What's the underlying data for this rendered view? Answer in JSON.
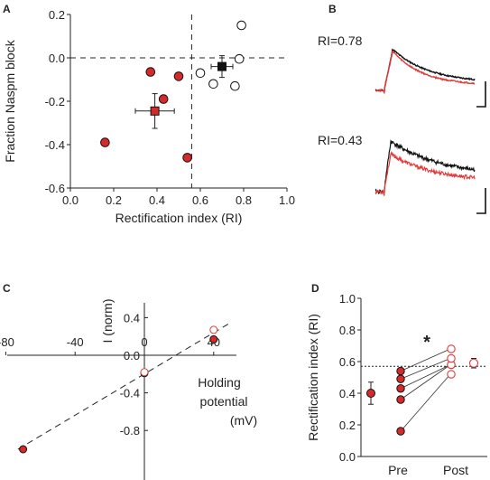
{
  "chart_data": [
    {
      "panel": "A",
      "type": "scatter",
      "xlabel": "Rectification index (RI)",
      "ylabel": "Fraction Naspm block",
      "xlim": [
        0.0,
        1.0
      ],
      "ylim": [
        -0.6,
        0.2
      ],
      "xticks": [
        "0.0",
        "0.2",
        "0.4",
        "0.6",
        "0.8",
        "1.0"
      ],
      "yticks": [
        "0.2",
        "0.0",
        "-0.2",
        "-0.4",
        "-0.6"
      ],
      "threshold_x": 0.56,
      "threshold_y": 0.0,
      "series": [
        {
          "fill": "#d42a2a",
          "marker": "circle",
          "points": [
            [
              0.16,
              -0.39
            ],
            [
              0.37,
              -0.065
            ],
            [
              0.43,
              -0.19
            ],
            [
              0.5,
              -0.085
            ],
            [
              0.54,
              -0.46
            ]
          ]
        },
        {
          "fill": "#ffffff",
          "marker": "circle",
          "points": [
            [
              0.6,
              -0.07
            ],
            [
              0.66,
              -0.12
            ],
            [
              0.76,
              -0.13
            ],
            [
              0.78,
              -0.005
            ],
            [
              0.79,
              0.15
            ]
          ]
        },
        {
          "fill": "#d42a2a",
          "marker": "square",
          "points": [
            [
              0.39,
              -0.245
            ]
          ],
          "xerr": 0.09,
          "yerr": 0.08
        },
        {
          "fill": "#111111",
          "marker": "square",
          "points": [
            [
              0.7,
              -0.04
            ]
          ],
          "xerr": 0.05,
          "yerr": 0.05
        }
      ]
    },
    {
      "panel": "B",
      "type": "line",
      "labels": [
        "RI=0.78",
        "RI=0.43"
      ],
      "series_colors": [
        "#111111",
        "#e33a3a"
      ]
    },
    {
      "panel": "C",
      "type": "scatter",
      "ylabel": "I (norm)",
      "xlabel_lines": [
        "Holding",
        "potential",
        "(mV)"
      ],
      "xlim": [
        -80,
        50
      ],
      "ylim": [
        -1.0,
        0.5
      ],
      "xticks": [
        "-80",
        "-40",
        "0",
        "40"
      ],
      "xtick_values": [
        -80,
        -40,
        0,
        40
      ],
      "yticks": [
        "0.4",
        "0.0",
        "-0.4",
        "-0.8"
      ],
      "ytick_values": [
        0.4,
        0.0,
        -0.4,
        -0.8
      ],
      "series": [
        {
          "fill": "#d42a2a",
          "points": [
            [
              -70,
              -1.0
            ],
            [
              0,
              -0.19
            ],
            [
              40,
              0.17
            ]
          ]
        },
        {
          "fill": "#ffffff",
          "stroke": "#e33a3a",
          "points": [
            [
              0,
              -0.18
            ],
            [
              40,
              0.27
            ]
          ]
        }
      ],
      "fit_line": [
        [
          -73,
          -1.0
        ],
        [
          50,
          0.35
        ]
      ]
    },
    {
      "panel": "D",
      "type": "scatter",
      "ylabel": "Rectification index (RI)",
      "categories": [
        "Pre",
        "Post"
      ],
      "ylim": [
        0.0,
        1.0
      ],
      "yticks": [
        "1.0",
        "0.8",
        "0.6",
        "0.4",
        "0.2",
        "0.0"
      ],
      "ytick_values": [
        1.0,
        0.8,
        0.6,
        0.4,
        0.2,
        0.0
      ],
      "threshold_y": 0.57,
      "significance": "*",
      "pre": [
        0.16,
        0.36,
        0.43,
        0.49,
        0.54
      ],
      "post": [
        0.52,
        0.58,
        0.58,
        0.62,
        0.68
      ],
      "pre_mean": 0.4,
      "pre_err": 0.07,
      "post_mean": 0.59,
      "post_err": 0.03
    }
  ],
  "panel_labels": {
    "a": "A",
    "b": "B",
    "c": "C",
    "d": "D"
  }
}
